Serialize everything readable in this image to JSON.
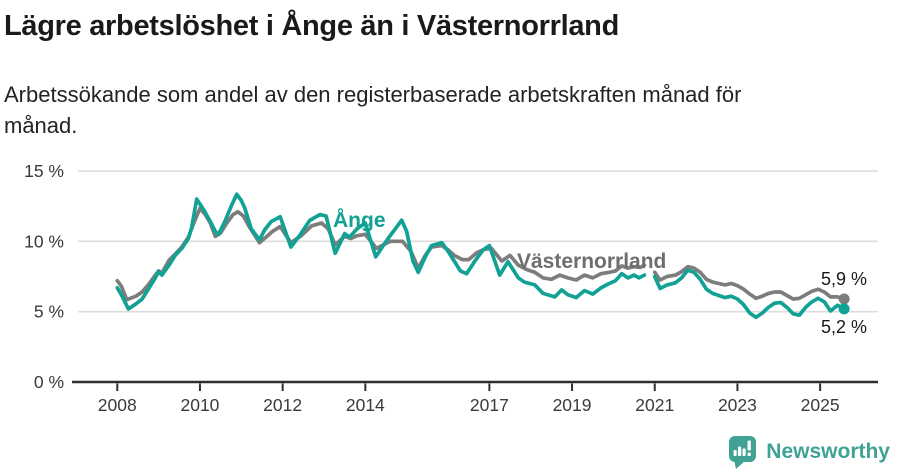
{
  "header": {
    "title": "Lägre arbetslöshet i Ånge än i Västernorrland",
    "subtitle_line1": "Arbetssökande som andel av den registerbaserade arbetskraften månad för",
    "subtitle_line2": "månad."
  },
  "footer": {
    "brand": "Newsworthy",
    "brand_color": "#3fa294",
    "logo_icon": "newsworthy-chart-bubble-icon"
  },
  "chart_data": {
    "type": "line",
    "title": "Lägre arbetslöshet i Ånge än i Västernorrland",
    "xlabel": "",
    "ylabel": "",
    "ylim": [
      0,
      15
    ],
    "xlim": [
      2007.05,
      2026.4
    ],
    "grid": "horizontal",
    "legend_position": "inline-labels",
    "y_ticks": [
      {
        "value": 0,
        "label": "0 %"
      },
      {
        "value": 5,
        "label": "5 %"
      },
      {
        "value": 10,
        "label": "10 %"
      },
      {
        "value": 15,
        "label": "15 %"
      }
    ],
    "x_ticks": [
      {
        "value": 2008,
        "label": "2008"
      },
      {
        "value": 2010,
        "label": "2010"
      },
      {
        "value": 2012,
        "label": "2012"
      },
      {
        "value": 2014,
        "label": "2014"
      },
      {
        "value": 2017,
        "label": "2017"
      },
      {
        "value": 2019,
        "label": "2019"
      },
      {
        "value": 2021,
        "label": "2021"
      },
      {
        "value": 2023,
        "label": "2023"
      },
      {
        "value": 2025,
        "label": "2025"
      }
    ],
    "series": [
      {
        "name": "Ånge",
        "color": "#12a195",
        "end_label": "5,2 %",
        "end_value": 5.2,
        "segments": [
          [
            [
              2008.0,
              6.7
            ],
            [
              2008.1,
              6.2
            ],
            [
              2008.27,
              5.2
            ],
            [
              2008.45,
              5.55
            ],
            [
              2008.6,
              5.9
            ],
            [
              2008.75,
              6.6
            ],
            [
              2008.92,
              7.4
            ],
            [
              2009.0,
              7.85
            ],
            [
              2009.08,
              7.6
            ],
            [
              2009.25,
              8.3
            ],
            [
              2009.4,
              9.0
            ],
            [
              2009.56,
              9.5
            ],
            [
              2009.72,
              10.2
            ],
            [
              2009.8,
              11.0
            ],
            [
              2009.92,
              13.0
            ],
            [
              2010.1,
              12.2
            ],
            [
              2010.25,
              11.4
            ],
            [
              2010.37,
              10.7
            ],
            [
              2010.45,
              10.5
            ],
            [
              2010.6,
              11.4
            ],
            [
              2010.77,
              12.6
            ],
            [
              2010.89,
              13.35
            ],
            [
              2011.0,
              12.9
            ],
            [
              2011.08,
              12.4
            ],
            [
              2011.24,
              10.9
            ],
            [
              2011.44,
              10.1
            ],
            [
              2011.56,
              10.8
            ],
            [
              2011.72,
              11.4
            ],
            [
              2011.94,
              11.75
            ],
            [
              2012.2,
              9.6
            ],
            [
              2012.42,
              10.45
            ],
            [
              2012.66,
              11.5
            ],
            [
              2012.9,
              11.9
            ],
            [
              2013.05,
              11.8
            ],
            [
              2013.27,
              9.15
            ],
            [
              2013.5,
              10.55
            ],
            [
              2013.62,
              10.3
            ],
            [
              2013.8,
              10.9
            ],
            [
              2014.0,
              11.3
            ],
            [
              2014.25,
              8.9
            ],
            [
              2014.55,
              10.2
            ],
            [
              2014.88,
              11.5
            ],
            [
              2015.0,
              10.7
            ],
            [
              2015.15,
              8.6
            ],
            [
              2015.28,
              7.8
            ],
            [
              2015.45,
              8.9
            ],
            [
              2015.6,
              9.7
            ],
            [
              2015.85,
              9.9
            ],
            [
              2016.0,
              9.3
            ],
            [
              2016.15,
              8.6
            ],
            [
              2016.3,
              7.9
            ],
            [
              2016.45,
              7.7
            ],
            [
              2016.65,
              8.6
            ],
            [
              2016.85,
              9.4
            ],
            [
              2017.0,
              9.7
            ],
            [
              2017.25,
              7.6
            ],
            [
              2017.45,
              8.55
            ],
            [
              2017.7,
              7.4
            ],
            [
              2017.85,
              7.1
            ],
            [
              2018.1,
              6.9
            ],
            [
              2018.3,
              6.3
            ],
            [
              2018.58,
              6.05
            ],
            [
              2018.75,
              6.55
            ],
            [
              2018.9,
              6.2
            ],
            [
              2019.1,
              6.0
            ],
            [
              2019.3,
              6.5
            ],
            [
              2019.5,
              6.25
            ],
            [
              2019.7,
              6.7
            ],
            [
              2019.9,
              7.0
            ],
            [
              2020.05,
              7.2
            ],
            [
              2020.2,
              7.7
            ],
            [
              2020.35,
              7.4
            ],
            [
              2020.5,
              7.6
            ],
            [
              2020.62,
              7.4
            ],
            [
              2020.75,
              7.6
            ]
          ],
          [
            [
              2021.0,
              7.5
            ],
            [
              2021.13,
              6.65
            ],
            [
              2021.3,
              6.9
            ],
            [
              2021.5,
              7.05
            ],
            [
              2021.65,
              7.4
            ],
            [
              2021.8,
              7.95
            ],
            [
              2021.95,
              7.8
            ],
            [
              2022.1,
              7.3
            ],
            [
              2022.25,
              6.6
            ],
            [
              2022.4,
              6.3
            ],
            [
              2022.55,
              6.15
            ],
            [
              2022.7,
              6.0
            ],
            [
              2022.85,
              6.1
            ],
            [
              2023.0,
              5.9
            ],
            [
              2023.15,
              5.5
            ],
            [
              2023.3,
              4.9
            ],
            [
              2023.45,
              4.6
            ],
            [
              2023.6,
              4.9
            ],
            [
              2023.75,
              5.3
            ],
            [
              2023.9,
              5.6
            ],
            [
              2024.05,
              5.65
            ],
            [
              2024.2,
              5.3
            ],
            [
              2024.35,
              4.85
            ],
            [
              2024.5,
              4.75
            ],
            [
              2024.65,
              5.3
            ],
            [
              2024.8,
              5.7
            ],
            [
              2024.95,
              5.95
            ],
            [
              2025.1,
              5.7
            ],
            [
              2025.25,
              5.05
            ],
            [
              2025.42,
              5.45
            ],
            [
              2025.58,
              5.2
            ]
          ]
        ]
      },
      {
        "name": "Västernorrland",
        "color": "#7d7d7d",
        "end_label": "5,9 %",
        "end_value": 5.9,
        "segments": [
          [
            [
              2008.0,
              7.2
            ],
            [
              2008.1,
              6.8
            ],
            [
              2008.23,
              5.85
            ],
            [
              2008.45,
              6.1
            ],
            [
              2008.6,
              6.4
            ],
            [
              2008.75,
              6.9
            ],
            [
              2008.92,
              7.6
            ],
            [
              2009.0,
              7.9
            ],
            [
              2009.08,
              7.75
            ],
            [
              2009.25,
              8.65
            ],
            [
              2009.4,
              9.1
            ],
            [
              2009.56,
              9.6
            ],
            [
              2009.72,
              10.3
            ],
            [
              2009.85,
              11.3
            ],
            [
              2010.0,
              12.35
            ],
            [
              2010.13,
              11.9
            ],
            [
              2010.25,
              11.3
            ],
            [
              2010.37,
              10.35
            ],
            [
              2010.5,
              10.6
            ],
            [
              2010.65,
              11.3
            ],
            [
              2010.8,
              11.9
            ],
            [
              2010.92,
              12.1
            ],
            [
              2011.05,
              11.8
            ],
            [
              2011.2,
              11.0
            ],
            [
              2011.44,
              9.9
            ],
            [
              2011.6,
              10.3
            ],
            [
              2011.75,
              10.7
            ],
            [
              2011.94,
              11.05
            ],
            [
              2012.2,
              9.9
            ],
            [
              2012.45,
              10.4
            ],
            [
              2012.7,
              11.1
            ],
            [
              2012.94,
              11.3
            ],
            [
              2013.1,
              10.9
            ],
            [
              2013.27,
              9.75
            ],
            [
              2013.5,
              10.35
            ],
            [
              2013.65,
              10.2
            ],
            [
              2013.8,
              10.4
            ],
            [
              2014.0,
              10.5
            ],
            [
              2014.27,
              9.5
            ],
            [
              2014.6,
              10.0
            ],
            [
              2014.9,
              10.0
            ],
            [
              2015.1,
              9.3
            ],
            [
              2015.28,
              8.1
            ],
            [
              2015.45,
              9.0
            ],
            [
              2015.6,
              9.6
            ],
            [
              2015.85,
              9.7
            ],
            [
              2016.0,
              9.4
            ],
            [
              2016.15,
              9.0
            ],
            [
              2016.35,
              8.7
            ],
            [
              2016.5,
              8.7
            ],
            [
              2016.7,
              9.2
            ],
            [
              2016.9,
              9.45
            ],
            [
              2017.05,
              9.5
            ],
            [
              2017.3,
              8.6
            ],
            [
              2017.5,
              9.0
            ],
            [
              2017.7,
              8.3
            ],
            [
              2017.9,
              8.0
            ],
            [
              2018.1,
              7.8
            ],
            [
              2018.3,
              7.4
            ],
            [
              2018.5,
              7.3
            ],
            [
              2018.7,
              7.6
            ],
            [
              2018.9,
              7.4
            ],
            [
              2019.1,
              7.25
            ],
            [
              2019.3,
              7.6
            ],
            [
              2019.5,
              7.4
            ],
            [
              2019.7,
              7.7
            ],
            [
              2019.9,
              7.8
            ],
            [
              2020.05,
              7.9
            ],
            [
              2020.2,
              8.25
            ],
            [
              2020.35,
              8.1
            ],
            [
              2020.5,
              8.2
            ],
            [
              2020.65,
              8.15
            ],
            [
              2020.75,
              8.3
            ]
          ],
          [
            [
              2021.0,
              7.8
            ],
            [
              2021.13,
              7.25
            ],
            [
              2021.3,
              7.5
            ],
            [
              2021.5,
              7.6
            ],
            [
              2021.65,
              7.85
            ],
            [
              2021.8,
              8.2
            ],
            [
              2021.95,
              8.1
            ],
            [
              2022.1,
              7.8
            ],
            [
              2022.25,
              7.3
            ],
            [
              2022.4,
              7.1
            ],
            [
              2022.55,
              7.0
            ],
            [
              2022.7,
              6.9
            ],
            [
              2022.85,
              7.0
            ],
            [
              2023.0,
              6.85
            ],
            [
              2023.15,
              6.6
            ],
            [
              2023.3,
              6.25
            ],
            [
              2023.45,
              5.95
            ],
            [
              2023.6,
              6.1
            ],
            [
              2023.75,
              6.3
            ],
            [
              2023.9,
              6.4
            ],
            [
              2024.05,
              6.4
            ],
            [
              2024.2,
              6.15
            ],
            [
              2024.35,
              5.9
            ],
            [
              2024.5,
              5.95
            ],
            [
              2024.65,
              6.2
            ],
            [
              2024.8,
              6.45
            ],
            [
              2024.95,
              6.6
            ],
            [
              2025.1,
              6.4
            ],
            [
              2025.25,
              6.05
            ],
            [
              2025.42,
              6.05
            ],
            [
              2025.58,
              5.9
            ]
          ]
        ]
      }
    ],
    "colors": {
      "gridline": "#dcdcdc",
      "axis": "#2e2e2e",
      "tick_label": "#3a3a3a",
      "ange_label": "#12a195",
      "vasternorrland_label": "#6e6e6e"
    }
  }
}
